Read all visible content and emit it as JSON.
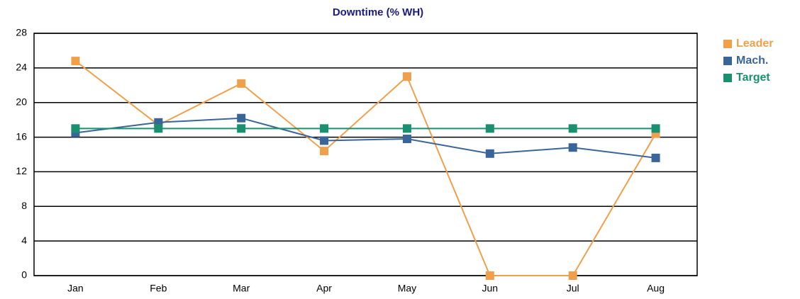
{
  "chart_data": {
    "type": "line",
    "title": "Downtime (% WH)",
    "categories": [
      "Jan",
      "Feb",
      "Mar",
      "Apr",
      "May",
      "Jun",
      "Jul",
      "Aug"
    ],
    "series": [
      {
        "name": "Leader",
        "color": "#f0a04b",
        "values": [
          24.8,
          17.4,
          22.2,
          14.4,
          23,
          0,
          0,
          16.4
        ]
      },
      {
        "name": "Mach.",
        "color": "#3a6598",
        "values": [
          16.5,
          17.7,
          18.2,
          15.6,
          15.8,
          14.1,
          14.8,
          13.6
        ]
      },
      {
        "name": "Target",
        "color": "#1a9070",
        "values": [
          17,
          17,
          17,
          17,
          17,
          17,
          17,
          17
        ]
      }
    ],
    "ylim": [
      0,
      28
    ],
    "yticks": [
      0,
      4,
      8,
      12,
      16,
      20,
      24,
      28
    ],
    "grid": true
  }
}
